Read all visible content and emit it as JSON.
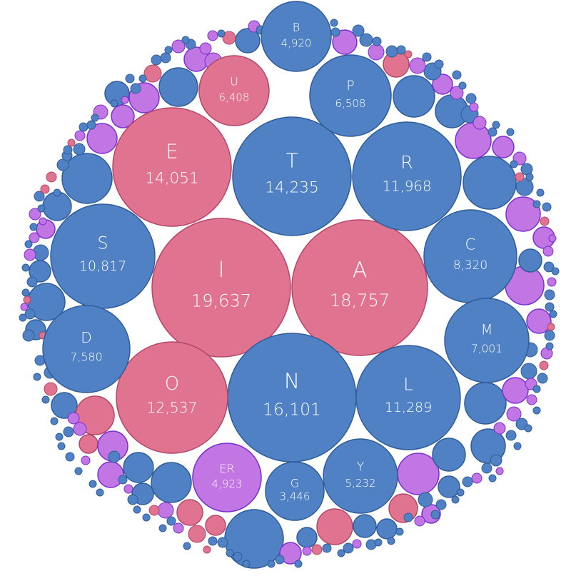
{
  "chart_data": {
    "type": "bubble-pack",
    "colors": {
      "vowel": "#e07490",
      "consonant": "#4f81c4",
      "bigram": "#c176e4",
      "vowel_stroke": "#b5466a",
      "consonant_stroke": "#2f5d99",
      "bigram_stroke": "#7a2fd0"
    },
    "labeled": [
      {
        "label": "I",
        "value": "19,637",
        "group": "vowel"
      },
      {
        "label": "A",
        "value": "18,757",
        "group": "vowel"
      },
      {
        "label": "N",
        "value": "16,101",
        "group": "consonant"
      },
      {
        "label": "T",
        "value": "14,235",
        "group": "consonant"
      },
      {
        "label": "E",
        "value": "14,051",
        "group": "vowel"
      },
      {
        "label": "O",
        "value": "12,537",
        "group": "vowel"
      },
      {
        "label": "R",
        "value": "11,968",
        "group": "consonant"
      },
      {
        "label": "L",
        "value": "11,289",
        "group": "consonant"
      },
      {
        "label": "S",
        "value": "10,817",
        "group": "consonant"
      },
      {
        "label": "C",
        "value": "8,320",
        "group": "consonant"
      },
      {
        "label": "D",
        "value": "7,580",
        "group": "consonant"
      },
      {
        "label": "M",
        "value": "7,001",
        "group": "consonant"
      },
      {
        "label": "P",
        "value": "6,508",
        "group": "consonant"
      },
      {
        "label": "U",
        "value": "6,408",
        "group": "vowel"
      },
      {
        "label": "Y",
        "value": "5,232",
        "group": "consonant"
      },
      {
        "label": "ER",
        "value": "4,923",
        "group": "bigram"
      },
      {
        "label": "B",
        "value": "4,920",
        "group": "consonant"
      },
      {
        "label": "G",
        "value": "3,446",
        "group": "consonant"
      }
    ]
  }
}
